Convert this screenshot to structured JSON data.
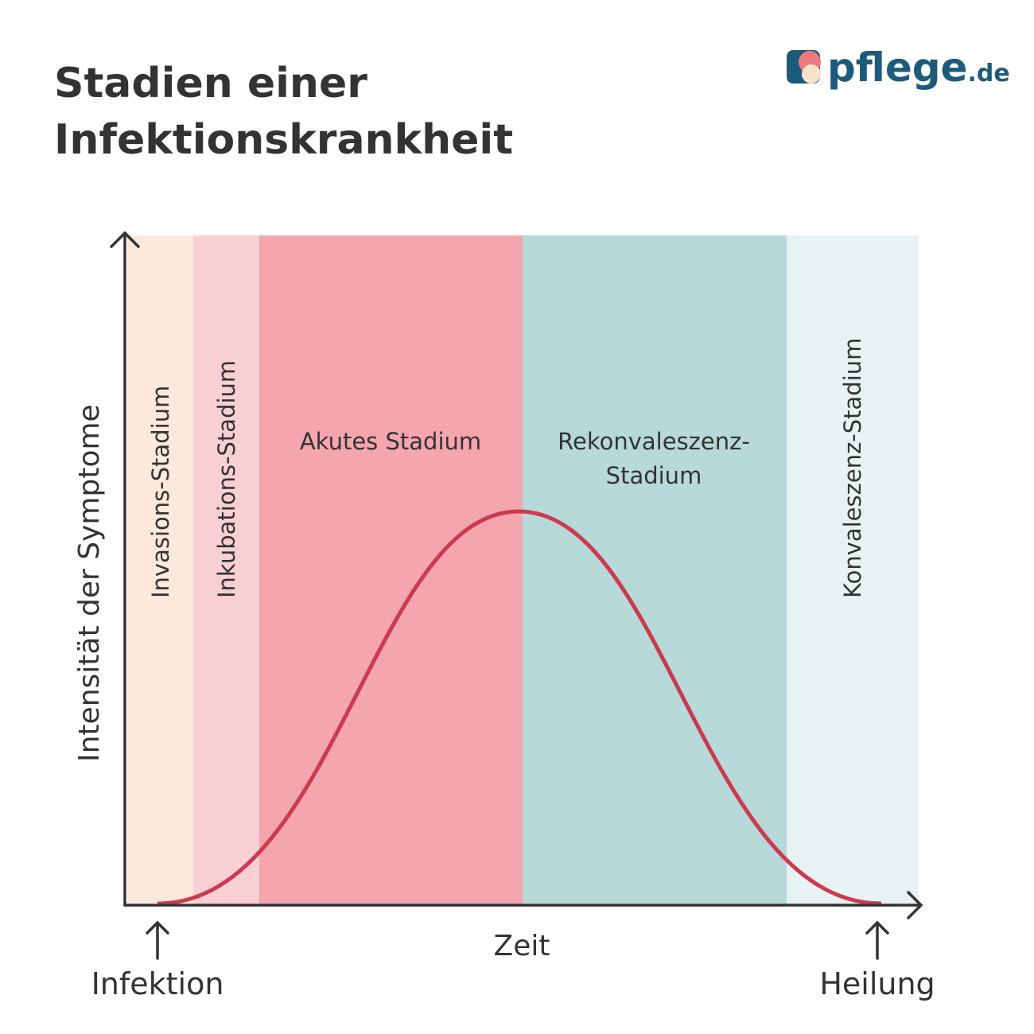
{
  "header": {
    "title_lines": [
      "Stadien einer",
      "Infektionskrankheit"
    ],
    "logo": {
      "name": "pflege",
      "suffix": ".de"
    }
  },
  "axes": {
    "y_label": "Intensität der Symptome",
    "x_label": "Zeit"
  },
  "stages": [
    {
      "label_lines": [
        "Invasions-Stadium"
      ]
    },
    {
      "label_lines": [
        "Inkubations-Stadium"
      ]
    },
    {
      "label_lines": [
        "Akutes Stadium"
      ]
    },
    {
      "label_lines": [
        "Rekonvaleszenz-",
        "Stadium"
      ]
    },
    {
      "label_lines": [
        "Konvaleszenz-Stadium"
      ]
    }
  ],
  "markers": {
    "start": "Infektion",
    "end": "Heilung"
  }
}
